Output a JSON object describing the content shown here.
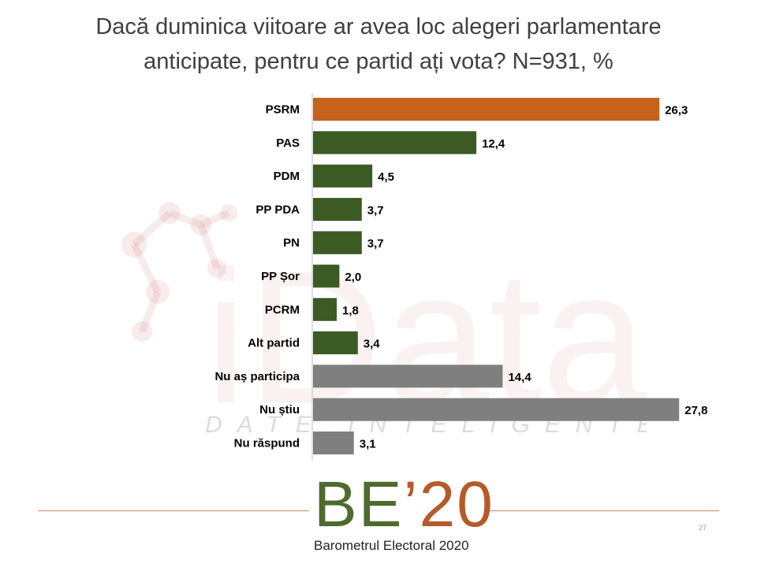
{
  "title": {
    "line1": "Dacă duminica viitoare ar avea loc alegeri parlamentare",
    "line2": "anticipate, pentru ce partid ați vota? N=931, %"
  },
  "watermark": {
    "brand": "iData",
    "tagline": "DATE INTELIGENTE"
  },
  "chart_data": {
    "type": "bar",
    "orientation": "horizontal",
    "title": "Dacă duminica viitoare ar avea loc alegeri parlamentare anticipate, pentru ce partid ați vota? N=931, %",
    "xlabel": "",
    "ylabel": "",
    "xlim": [
      0,
      28
    ],
    "grid": false,
    "categories": [
      "PSRM",
      "PAS",
      "PDM",
      "PP PDA",
      "PN",
      "PP Șor",
      "PCRM",
      "Alt partid",
      "Nu aș participa",
      "Nu știu",
      "Nu răspund"
    ],
    "values": [
      26.3,
      12.4,
      4.5,
      3.7,
      3.7,
      2.0,
      1.8,
      3.4,
      14.4,
      27.8,
      3.1
    ],
    "value_labels": [
      "26,3",
      "12,4",
      "4,5",
      "3,7",
      "3,7",
      "2,0",
      "1,8",
      "3,4",
      "14,4",
      "27,8",
      "3,1"
    ],
    "colors": [
      "#c5621c",
      "#3b5a24",
      "#3b5a24",
      "#3b5a24",
      "#3b5a24",
      "#3b5a24",
      "#3b5a24",
      "#3b5a24",
      "#7f7f7f",
      "#7f7f7f",
      "#7f7f7f"
    ]
  },
  "logo": {
    "be": "BE",
    "year": "’20",
    "subtitle": "Barometrul Electoral 2020",
    "colors": {
      "be": "#4d6b2d",
      "year": "#b55b2a"
    }
  },
  "page_number": "27"
}
